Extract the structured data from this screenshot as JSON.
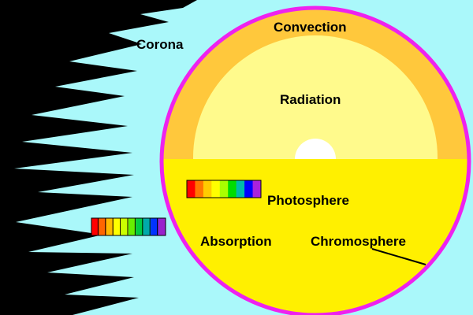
{
  "labels": {
    "corona": "Corona",
    "convection": "Convection",
    "radiation": "Radiation",
    "photosphere": "Photosphere",
    "absorption": "Absorption",
    "chromosphere": "Chromosphere"
  },
  "colors": {
    "background": "#000000",
    "corona": "#aaf8fa",
    "limb": "#ee22ee",
    "convection_zone": "#ffc83c",
    "radiation_zone": "#fffa8c",
    "core": "#ffffff",
    "atmosphere": "#fff000",
    "leader_line": "#000000"
  },
  "spectra": {
    "continuous": {
      "colors": [
        "#ff0000",
        "#ff7700",
        "#ffcc00",
        "#ffff00",
        "#aaff00",
        "#00dd00",
        "#00bbaa",
        "#0000ff",
        "#aa22dd"
      ]
    },
    "absorption": {
      "colors": [
        "#ff0000",
        "#ff6600",
        "#ffbb00",
        "#ffff00",
        "#ccff00",
        "#66ee00",
        "#00cc44",
        "#00aaaa",
        "#0033ff",
        "#9922cc"
      ]
    }
  }
}
